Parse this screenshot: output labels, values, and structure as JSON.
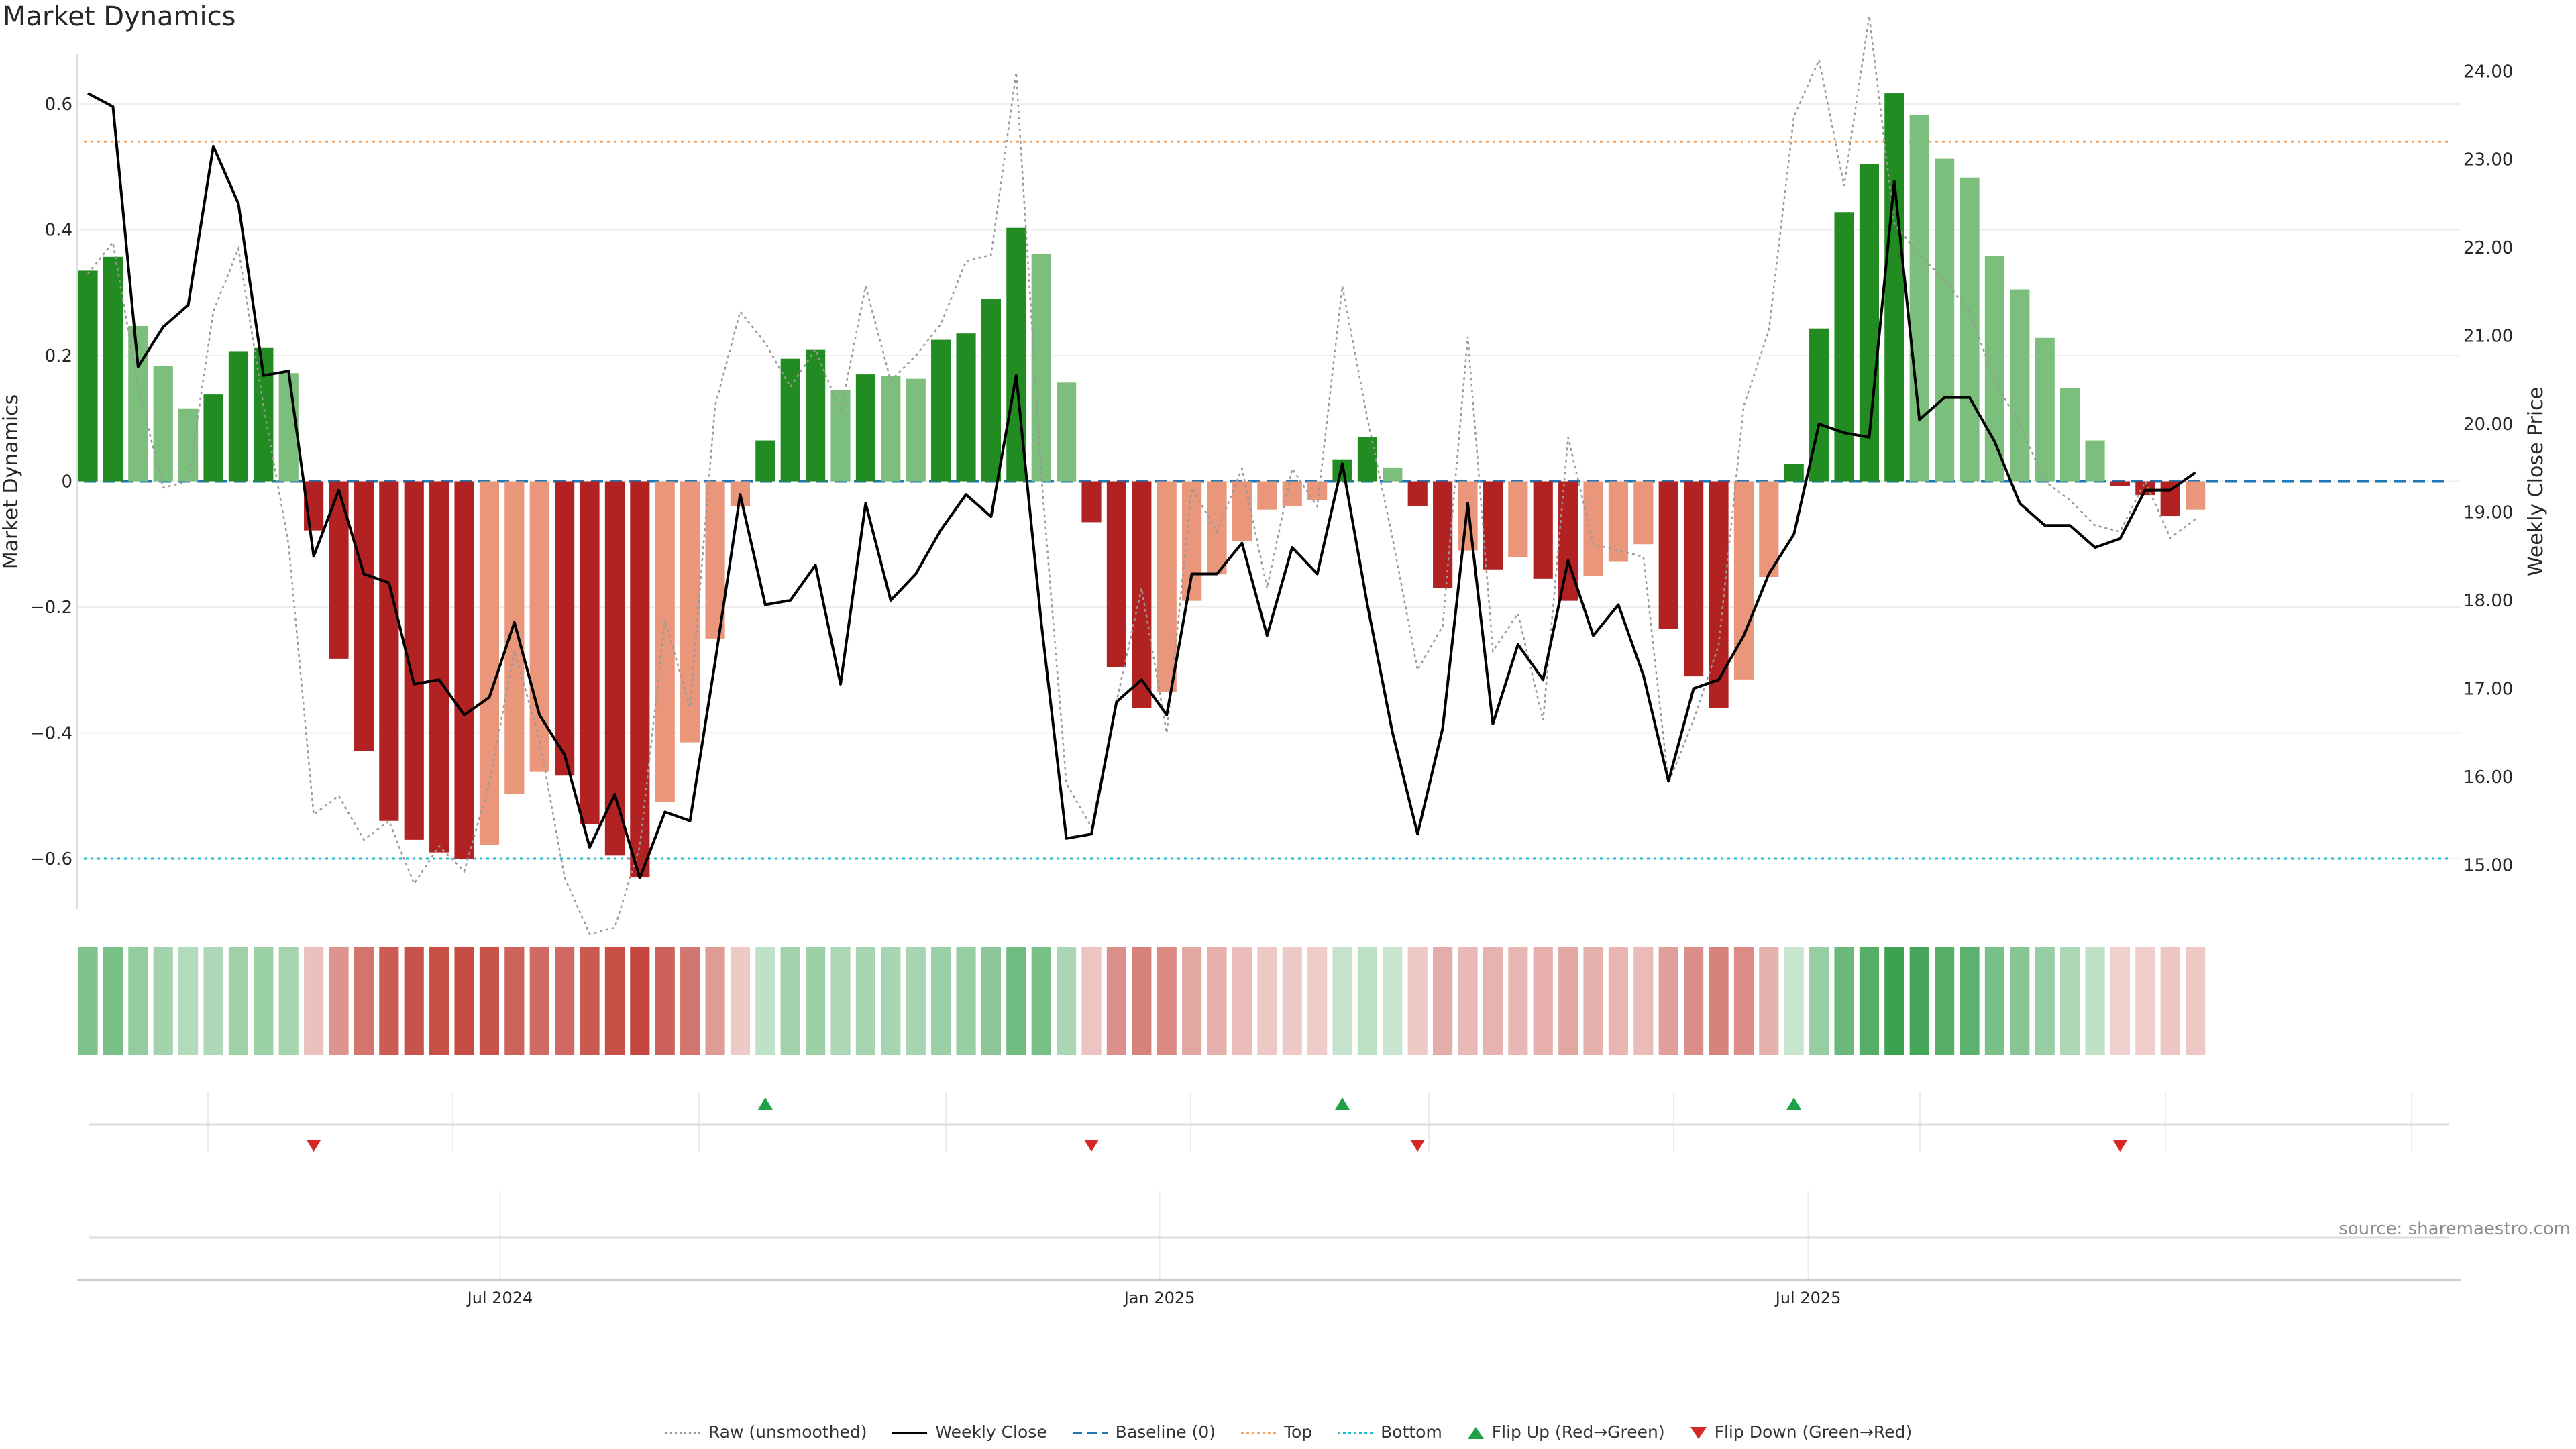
{
  "title": "Market Dynamics",
  "source": "source: sharemaestro.com",
  "colors": {
    "strong_green": "#228b22",
    "light_green": "#7cbf7c",
    "strong_red": "#b22222",
    "light_red": "#e9967a",
    "price_line": "#000000",
    "raw_line": "#999999",
    "baseline": "#1f77b4",
    "top": "#f4a460",
    "bottom": "#1ebcd6",
    "flip_up": "#21a04a",
    "flip_down": "#d62728"
  },
  "legend": [
    {
      "label": "Raw (unsmoothed)",
      "icon": "dotted-gray-line"
    },
    {
      "label": "Weekly Close",
      "icon": "solid-black-line"
    },
    {
      "label": "Baseline (0)",
      "icon": "dashed-blue-line"
    },
    {
      "label": "Top",
      "icon": "dotted-orange-line"
    },
    {
      "label": "Bottom",
      "icon": "dotted-cyan-line"
    },
    {
      "label": "Flip Up (Red→Green)",
      "icon": "triangle-up-green"
    },
    {
      "label": "Flip Down (Green→Red)",
      "icon": "triangle-down-red"
    }
  ],
  "chart_data": {
    "type": "bar",
    "title": "Market Dynamics",
    "ylabel": "Market Dynamics",
    "y2label": "Weekly Close Price",
    "ylim": [
      -0.68,
      0.68
    ],
    "y2lim": [
      14.5,
      24.2
    ],
    "yticks": [
      0.6,
      0.4,
      0.2,
      0,
      -0.2,
      -0.4,
      -0.6
    ],
    "ytick_labels": [
      "0.6",
      "0.4",
      "0.2",
      "0",
      "−0.2",
      "−0.4",
      "−0.6"
    ],
    "y2ticks": [
      24,
      23,
      22,
      21,
      20,
      19,
      18,
      17,
      16,
      15
    ],
    "y2tick_labels": [
      "24.00",
      "23.00",
      "22.00",
      "21.00",
      "20.00",
      "19.00",
      "18.00",
      "17.00",
      "16.00",
      "15.00"
    ],
    "x_start": "2024-03-08",
    "x_step_days": 7,
    "x_range": [
      "2024-03-05",
      "2025-12-30"
    ],
    "xticks": [
      "2024-07-01",
      "2025-01-01",
      "2025-07-01"
    ],
    "xtick_labels": [
      "Jul 2024",
      "Jan 2025",
      "Jul 2025"
    ],
    "top": 0.54,
    "bottom": -0.6,
    "baseline": 0,
    "grid": true,
    "legend_position": "bottom-center",
    "series": [
      {
        "name": "Market Dynamics",
        "kind": "bar",
        "values": [
          0.335,
          0.357,
          0.247,
          0.183,
          0.116,
          0.138,
          0.207,
          0.212,
          0.172,
          -0.078,
          -0.282,
          -0.429,
          -0.54,
          -0.57,
          -0.59,
          -0.6,
          -0.578,
          -0.497,
          -0.462,
          -0.468,
          -0.545,
          -0.595,
          -0.63,
          -0.51,
          -0.415,
          -0.25,
          -0.04,
          0.065,
          0.195,
          0.21,
          0.145,
          0.17,
          0.167,
          0.163,
          0.225,
          0.235,
          0.29,
          0.403,
          0.362,
          0.157,
          -0.065,
          -0.295,
          -0.36,
          -0.335,
          -0.19,
          -0.148,
          -0.095,
          -0.045,
          -0.04,
          -0.03,
          0.035,
          0.07,
          0.022,
          -0.04,
          -0.17,
          -0.11,
          -0.14,
          -0.12,
          -0.155,
          -0.19,
          -0.15,
          -0.128,
          -0.1,
          -0.235,
          -0.31,
          -0.36,
          -0.315,
          -0.152,
          0.028,
          0.243,
          0.428,
          0.505,
          0.617,
          0.583,
          0.513,
          0.483,
          0.358,
          0.305,
          0.228,
          0.148,
          0.065,
          -0.007,
          -0.022,
          -0.055,
          -0.045
        ],
        "colors": [
          "g",
          "g",
          "lg",
          "lg",
          "lg",
          "g",
          "g",
          "g",
          "lg",
          "r",
          "r",
          "r",
          "r",
          "r",
          "r",
          "r",
          "lr",
          "lr",
          "lr",
          "r",
          "r",
          "r",
          "r",
          "lr",
          "lr",
          "lr",
          "lr",
          "g",
          "g",
          "g",
          "lg",
          "g",
          "lg",
          "lg",
          "g",
          "g",
          "g",
          "g",
          "lg",
          "lg",
          "r",
          "r",
          "r",
          "lr",
          "lr",
          "lr",
          "lr",
          "lr",
          "lr",
          "lr",
          "g",
          "g",
          "lg",
          "r",
          "r",
          "lr",
          "r",
          "lr",
          "r",
          "r",
          "lr",
          "lr",
          "lr",
          "r",
          "r",
          "r",
          "lr",
          "lr",
          "g",
          "g",
          "g",
          "g",
          "g",
          "lg",
          "lg",
          "lg",
          "lg",
          "lg",
          "lg",
          "lg",
          "lg",
          "r",
          "r",
          "r",
          "lr"
        ]
      },
      {
        "name": "Weekly Close",
        "kind": "line",
        "axis": "right",
        "values": [
          23.75,
          23.6,
          20.65,
          21.1,
          21.35,
          23.15,
          22.5,
          20.55,
          20.6,
          18.5,
          19.25,
          18.3,
          18.2,
          17.05,
          17.1,
          16.7,
          16.9,
          17.75,
          16.7,
          16.25,
          15.2,
          15.8,
          14.85,
          15.6,
          15.5,
          17.3,
          19.2,
          17.95,
          18.0,
          18.4,
          17.05,
          19.1,
          18.0,
          18.3,
          18.8,
          19.2,
          18.95,
          20.55,
          17.75,
          15.3,
          15.35,
          16.85,
          17.1,
          16.7,
          18.3,
          18.3,
          18.65,
          17.6,
          18.6,
          18.3,
          19.55,
          17.95,
          16.5,
          15.35,
          16.55,
          19.1,
          16.6,
          17.5,
          17.1,
          18.45,
          17.6,
          17.95,
          17.15,
          15.95,
          17.0,
          17.1,
          17.6,
          18.3,
          18.75,
          20.0,
          19.9,
          19.85,
          22.75,
          20.05,
          20.3,
          20.3,
          19.8,
          19.1,
          18.85,
          18.85,
          18.6,
          18.7,
          19.25,
          19.25,
          19.45
        ]
      },
      {
        "name": "Raw (unsmoothed)",
        "kind": "line",
        "style": "dotted",
        "axis": "left",
        "values": [
          0.33,
          0.38,
          0.15,
          -0.01,
          0.0,
          0.27,
          0.37,
          0.12,
          -0.1,
          -0.53,
          -0.5,
          -0.57,
          -0.54,
          -0.64,
          -0.58,
          -0.62,
          -0.48,
          -0.27,
          -0.41,
          -0.63,
          -0.72,
          -0.71,
          -0.58,
          -0.22,
          -0.36,
          0.12,
          0.27,
          0.22,
          0.15,
          0.21,
          0.11,
          0.31,
          0.16,
          0.2,
          0.25,
          0.35,
          0.36,
          0.65,
          0.01,
          -0.48,
          -0.55,
          -0.35,
          -0.17,
          -0.4,
          -0.01,
          -0.08,
          0.02,
          -0.17,
          0.02,
          -0.04,
          0.31,
          0.1,
          -0.09,
          -0.3,
          -0.23,
          0.23,
          -0.27,
          -0.21,
          -0.38,
          0.07,
          -0.1,
          -0.11,
          -0.12,
          -0.48,
          -0.38,
          -0.26,
          0.12,
          0.24,
          0.58,
          0.67,
          0.47,
          0.74,
          0.41,
          0.36,
          0.32,
          0.27,
          0.16,
          0.09,
          0.0,
          -0.03,
          -0.07,
          -0.08,
          0.0,
          -0.09,
          -0.06
        ]
      }
    ],
    "strength_strip": "bar values shown as a color-graded heat strip",
    "flip_up_weeks": [
      27,
      50,
      68
    ],
    "flip_down_weeks": [
      9,
      40,
      53,
      81
    ]
  }
}
